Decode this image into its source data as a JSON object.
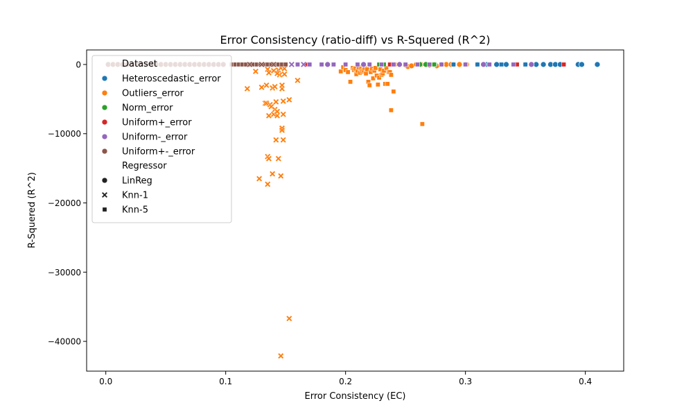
{
  "chart_data": {
    "type": "scatter",
    "title": "Error Consistency (ratio-diff) vs R-Squered (R^2)",
    "xlabel": "Error Consistency (EC)",
    "ylabel": "R-Squered (R^2)",
    "xlim": [
      -0.016,
      0.432
    ],
    "ylim": [
      -44300,
      2100
    ],
    "xticks": [
      0.0,
      0.1,
      0.2,
      0.3,
      0.4
    ],
    "xtick_labels": [
      "0.0",
      "0.1",
      "0.2",
      "0.3",
      "0.4"
    ],
    "yticks": [
      0,
      -10000,
      -20000,
      -30000,
      -40000
    ],
    "ytick_labels": [
      "0",
      "−10000",
      "−20000",
      "−30000",
      "−40000"
    ],
    "grid": false,
    "legend_position": "top-left",
    "legend": {
      "hue_title": "Dataset",
      "hue_entries": [
        {
          "name": "Heteroscedastic_error",
          "color": "#1f77b4"
        },
        {
          "name": "Outliers_error",
          "color": "#ff7f0e"
        },
        {
          "name": "Norm_error",
          "color": "#2ca02c"
        },
        {
          "name": "Uniform+_error",
          "color": "#d62728"
        },
        {
          "name": "Uniform-_error",
          "color": "#9467bd"
        },
        {
          "name": "Uniform+-_error",
          "color": "#8c564b"
        }
      ],
      "style_title": "Regressor",
      "style_entries": [
        {
          "name": "LinReg",
          "marker": "circle"
        },
        {
          "name": "Knn-1",
          "marker": "x"
        },
        {
          "name": "Knn-5",
          "marker": "square"
        }
      ]
    },
    "series": [
      {
        "dataset": "Outliers_error",
        "regressor": "Knn-1",
        "points": [
          [
            0.118,
            -3500
          ],
          [
            0.125,
            -1000
          ],
          [
            0.128,
            -16500
          ],
          [
            0.13,
            -3300
          ],
          [
            0.133,
            -5600
          ],
          [
            0.134,
            -3000
          ],
          [
            0.134,
            -5600
          ],
          [
            0.135,
            -17300
          ],
          [
            0.135,
            -13300
          ],
          [
            0.136,
            -13600
          ],
          [
            0.136,
            -7400
          ],
          [
            0.137,
            -5800
          ],
          [
            0.138,
            -6100
          ],
          [
            0.139,
            -3400
          ],
          [
            0.139,
            -15800
          ],
          [
            0.14,
            -7200
          ],
          [
            0.141,
            -3200
          ],
          [
            0.141,
            -6500
          ],
          [
            0.142,
            -10900
          ],
          [
            0.142,
            -5400
          ],
          [
            0.143,
            -7400
          ],
          [
            0.143,
            -6800
          ],
          [
            0.144,
            -13600
          ],
          [
            0.145,
            -1500
          ],
          [
            0.146,
            -16100
          ],
          [
            0.146,
            -42100
          ],
          [
            0.147,
            -9200
          ],
          [
            0.147,
            -9500
          ],
          [
            0.147,
            -3500
          ],
          [
            0.147,
            -3000
          ],
          [
            0.148,
            -5300
          ],
          [
            0.148,
            -7200
          ],
          [
            0.148,
            -10900
          ],
          [
            0.149,
            -1400
          ],
          [
            0.153,
            -5100
          ],
          [
            0.153,
            -36700
          ],
          [
            0.16,
            -2300
          ],
          [
            0.135,
            -700
          ],
          [
            0.14,
            -900
          ],
          [
            0.144,
            -800
          ],
          [
            0.146,
            -500
          ],
          [
            0.149,
            -600
          ],
          [
            0.136,
            -1200
          ],
          [
            0.143,
            -1300
          ]
        ]
      },
      {
        "dataset": "Outliers_error",
        "regressor": "Knn-5",
        "points": [
          [
            0.196,
            -1000
          ],
          [
            0.198,
            -400
          ],
          [
            0.2,
            -800
          ],
          [
            0.202,
            -1100
          ],
          [
            0.204,
            -2500
          ],
          [
            0.206,
            -500
          ],
          [
            0.207,
            -800
          ],
          [
            0.208,
            -600
          ],
          [
            0.209,
            -1400
          ],
          [
            0.21,
            -900
          ],
          [
            0.211,
            -400
          ],
          [
            0.212,
            -1200
          ],
          [
            0.213,
            -600
          ],
          [
            0.214,
            -1000
          ],
          [
            0.215,
            -800
          ],
          [
            0.216,
            -500
          ],
          [
            0.217,
            -1300
          ],
          [
            0.218,
            -700
          ],
          [
            0.219,
            -2500
          ],
          [
            0.22,
            -3000
          ],
          [
            0.221,
            -1100
          ],
          [
            0.222,
            -600
          ],
          [
            0.223,
            -2000
          ],
          [
            0.224,
            -900
          ],
          [
            0.225,
            -500
          ],
          [
            0.226,
            -1600
          ],
          [
            0.227,
            -2900
          ],
          [
            0.228,
            -1900
          ],
          [
            0.229,
            -700
          ],
          [
            0.23,
            -1500
          ],
          [
            0.231,
            -1300
          ],
          [
            0.232,
            -900
          ],
          [
            0.233,
            -2800
          ],
          [
            0.234,
            -500
          ],
          [
            0.235,
            -2800
          ],
          [
            0.236,
            -1100
          ],
          [
            0.237,
            -1100
          ],
          [
            0.238,
            -1500
          ],
          [
            0.238,
            -6600
          ],
          [
            0.24,
            -3900
          ],
          [
            0.264,
            -8600
          ]
        ]
      },
      {
        "dataset": "Outliers_error",
        "regressor": "LinReg",
        "points": [
          [
            0.238,
            0
          ],
          [
            0.241,
            0
          ],
          [
            0.245,
            0
          ],
          [
            0.25,
            -100
          ],
          [
            0.252,
            -300
          ],
          [
            0.255,
            -200
          ],
          [
            0.259,
            0
          ],
          [
            0.263,
            0
          ],
          [
            0.268,
            0
          ],
          [
            0.27,
            -100
          ],
          [
            0.273,
            0
          ],
          [
            0.276,
            -200
          ],
          [
            0.28,
            0
          ],
          [
            0.284,
            0
          ],
          [
            0.288,
            0
          ],
          [
            0.295,
            0
          ],
          [
            0.301,
            0
          ]
        ]
      },
      {
        "dataset": "Heteroscedastic_error",
        "regressor": "LinReg",
        "points": [
          [
            0.28,
            0
          ],
          [
            0.29,
            0
          ],
          [
            0.3,
            0
          ],
          [
            0.31,
            0
          ],
          [
            0.318,
            0
          ],
          [
            0.326,
            0
          ],
          [
            0.334,
            0
          ],
          [
            0.342,
            0
          ],
          [
            0.35,
            0
          ],
          [
            0.355,
            0
          ],
          [
            0.359,
            0
          ],
          [
            0.365,
            0
          ],
          [
            0.371,
            0
          ],
          [
            0.375,
            0
          ],
          [
            0.379,
            0
          ],
          [
            0.394,
            0
          ],
          [
            0.397,
            0
          ],
          [
            0.41,
            0
          ]
        ]
      },
      {
        "dataset": "Heteroscedastic_error",
        "regressor": "Knn-5",
        "points": [
          [
            0.29,
            0
          ],
          [
            0.3,
            0
          ],
          [
            0.31,
            0
          ],
          [
            0.32,
            0
          ],
          [
            0.33,
            0
          ],
          [
            0.34,
            0
          ],
          [
            0.35,
            0
          ]
        ]
      },
      {
        "dataset": "Norm_error",
        "regressor": "LinReg",
        "points": [
          [
            0.262,
            0
          ],
          [
            0.267,
            0
          ],
          [
            0.274,
            0
          ]
        ]
      },
      {
        "dataset": "Norm_error",
        "regressor": "Knn-5",
        "points": [
          [
            0.228,
            0
          ],
          [
            0.232,
            0
          ],
          [
            0.274,
            0
          ]
        ]
      },
      {
        "dataset": "Uniform+_error",
        "regressor": "Knn-5",
        "points": [
          [
            0.167,
            0
          ],
          [
            0.237,
            0
          ],
          [
            0.343,
            0
          ],
          [
            0.382,
            0
          ]
        ]
      },
      {
        "dataset": "Uniform-_error",
        "regressor": "Knn-5",
        "points": [
          [
            0.16,
            0
          ],
          [
            0.17,
            0
          ],
          [
            0.18,
            0
          ],
          [
            0.19,
            0
          ],
          [
            0.2,
            0
          ],
          [
            0.21,
            0
          ],
          [
            0.22,
            0
          ],
          [
            0.23,
            0
          ],
          [
            0.24,
            0
          ],
          [
            0.25,
            0
          ],
          [
            0.26,
            0
          ],
          [
            0.27,
            0
          ],
          [
            0.28,
            0
          ],
          [
            0.3,
            0
          ],
          [
            0.32,
            0
          ],
          [
            0.34,
            0
          ]
        ]
      },
      {
        "dataset": "Uniform-_error",
        "regressor": "LinReg",
        "points": [
          [
            0.185,
            0
          ],
          [
            0.215,
            0
          ],
          [
            0.245,
            0
          ],
          [
            0.315,
            0
          ],
          [
            0.355,
            0
          ]
        ]
      },
      {
        "dataset": "Uniform-_error",
        "regressor": "Knn-1",
        "points": [
          [
            0.155,
            0
          ],
          [
            0.165,
            0
          ]
        ]
      },
      {
        "dataset": "Uniform+-_error",
        "regressor": "LinReg",
        "points": [
          [
            0.002,
            0
          ],
          [
            0.006,
            0
          ],
          [
            0.01,
            0
          ],
          [
            0.014,
            0
          ],
          [
            0.018,
            0
          ],
          [
            0.022,
            0
          ],
          [
            0.026,
            0
          ],
          [
            0.03,
            0
          ],
          [
            0.034,
            0
          ],
          [
            0.038,
            0
          ],
          [
            0.042,
            0
          ],
          [
            0.046,
            0
          ],
          [
            0.05,
            0
          ],
          [
            0.054,
            0
          ],
          [
            0.058,
            0
          ],
          [
            0.062,
            0
          ],
          [
            0.066,
            0
          ],
          [
            0.07,
            0
          ],
          [
            0.074,
            0
          ],
          [
            0.078,
            0
          ],
          [
            0.082,
            0
          ],
          [
            0.086,
            0
          ],
          [
            0.09,
            0
          ],
          [
            0.094,
            0
          ],
          [
            0.098,
            0
          ]
        ]
      },
      {
        "dataset": "Uniform+-_error",
        "regressor": "Knn-5",
        "points": [
          [
            0.105,
            0
          ],
          [
            0.108,
            0
          ],
          [
            0.111,
            0
          ],
          [
            0.114,
            0
          ],
          [
            0.117,
            0
          ],
          [
            0.12,
            0
          ],
          [
            0.123,
            0
          ],
          [
            0.126,
            0
          ],
          [
            0.129,
            0
          ],
          [
            0.132,
            0
          ],
          [
            0.135,
            0
          ],
          [
            0.138,
            0
          ],
          [
            0.141,
            0
          ],
          [
            0.144,
            0
          ],
          [
            0.147,
            0
          ],
          [
            0.15,
            0
          ]
        ]
      },
      {
        "dataset": "Uniform+-_error",
        "regressor": "Knn-1",
        "points": [
          [
            0.12,
            0
          ],
          [
            0.13,
            0
          ],
          [
            0.14,
            0
          ]
        ]
      }
    ]
  }
}
